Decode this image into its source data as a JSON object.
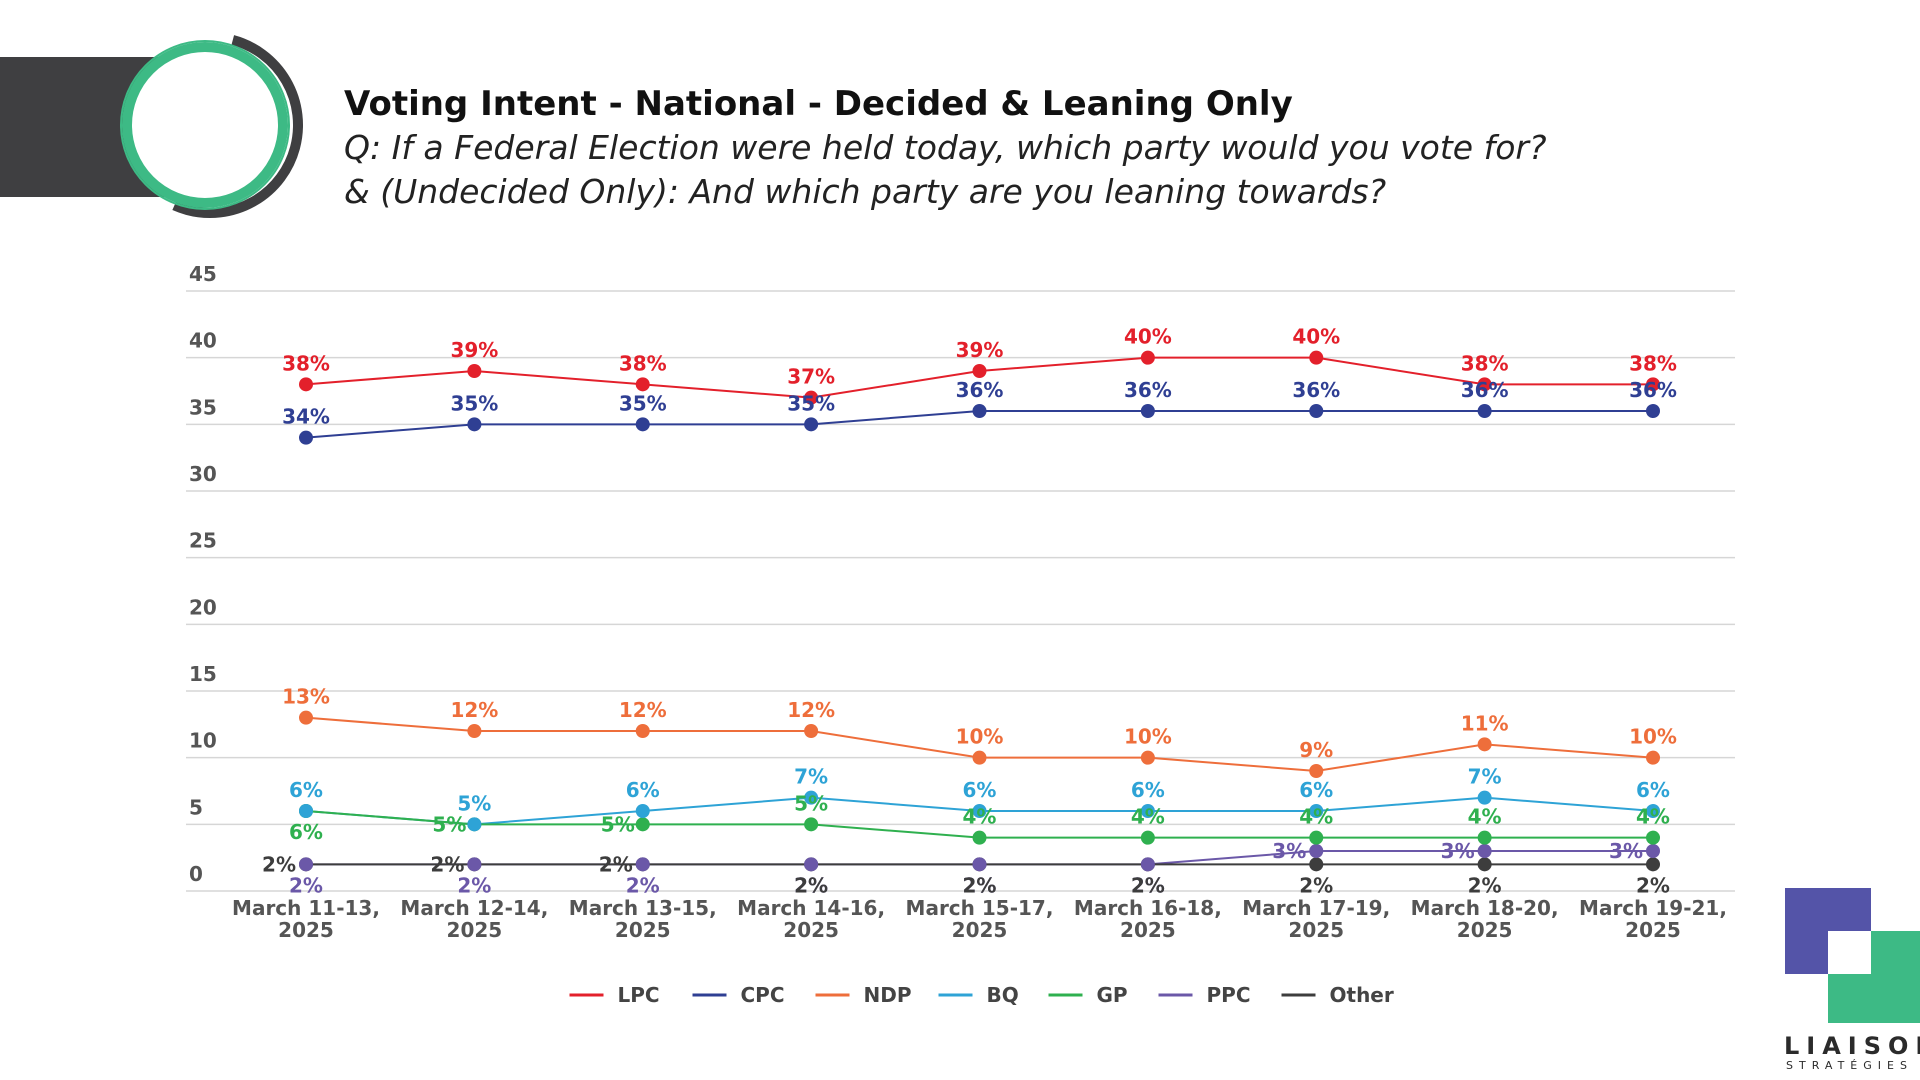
{
  "header": {
    "title": "Voting Intent - National - Decided & Leaning Only",
    "subtitle_line1": "Q: If a Federal Election were held today, which party would you vote for?",
    "subtitle_line2": "& (Undecided Only): And which party are you leaning towards?"
  },
  "brand": {
    "name": "LIAISON",
    "sub": "STRATÉGIES",
    "colors": {
      "dark": "#3f3f41",
      "green": "#3dba85",
      "purple": "#5454a8"
    }
  },
  "chart_data": {
    "type": "line",
    "title": "",
    "xlabel": "",
    "ylabel": "",
    "ylim": [
      0,
      45
    ],
    "yticks": [
      0,
      5,
      10,
      15,
      20,
      25,
      30,
      35,
      40,
      45
    ],
    "grid": true,
    "legend_position": "bottom",
    "categories": [
      [
        "March 11-13,",
        "2025"
      ],
      [
        "March 12-14,",
        "2025"
      ],
      [
        "March 13-15,",
        "2025"
      ],
      [
        "March 14-16,",
        "2025"
      ],
      [
        "March 15-17,",
        "2025"
      ],
      [
        "March 16-18,",
        "2025"
      ],
      [
        "March 17-19,",
        "2025"
      ],
      [
        "March 18-20,",
        "2025"
      ],
      [
        "March 19-21,",
        "2025"
      ]
    ],
    "series": [
      {
        "name": "LPC",
        "color": "#e3202b",
        "values": [
          38,
          39,
          38,
          37,
          39,
          40,
          40,
          38,
          38
        ],
        "label_pos": "above"
      },
      {
        "name": "CPC",
        "color": "#2f3f93",
        "values": [
          34,
          35,
          35,
          35,
          36,
          36,
          36,
          36,
          36
        ],
        "label_pos": "above"
      },
      {
        "name": "NDP",
        "color": "#ee6e3b",
        "values": [
          13,
          12,
          12,
          12,
          10,
          10,
          9,
          11,
          10
        ],
        "label_pos": "above"
      },
      {
        "name": "BQ",
        "color": "#2ea3d6",
        "values": [
          6,
          5,
          6,
          7,
          6,
          6,
          6,
          7,
          6
        ],
        "label_pos": "above"
      },
      {
        "name": "GP",
        "color": "#2fb04f",
        "values": [
          6,
          5,
          5,
          5,
          4,
          4,
          4,
          4,
          4
        ],
        "label_pos": "mixed"
      },
      {
        "name": "PPC",
        "color": "#6b58a8",
        "values": [
          2,
          2,
          2,
          2,
          2,
          2,
          3,
          3,
          3
        ],
        "label_pos": "mixed"
      },
      {
        "name": "Other",
        "color": "#3d3d3d",
        "values": [
          2,
          2,
          2,
          2,
          2,
          2,
          2,
          2,
          2
        ],
        "label_pos": "mixed"
      }
    ]
  }
}
